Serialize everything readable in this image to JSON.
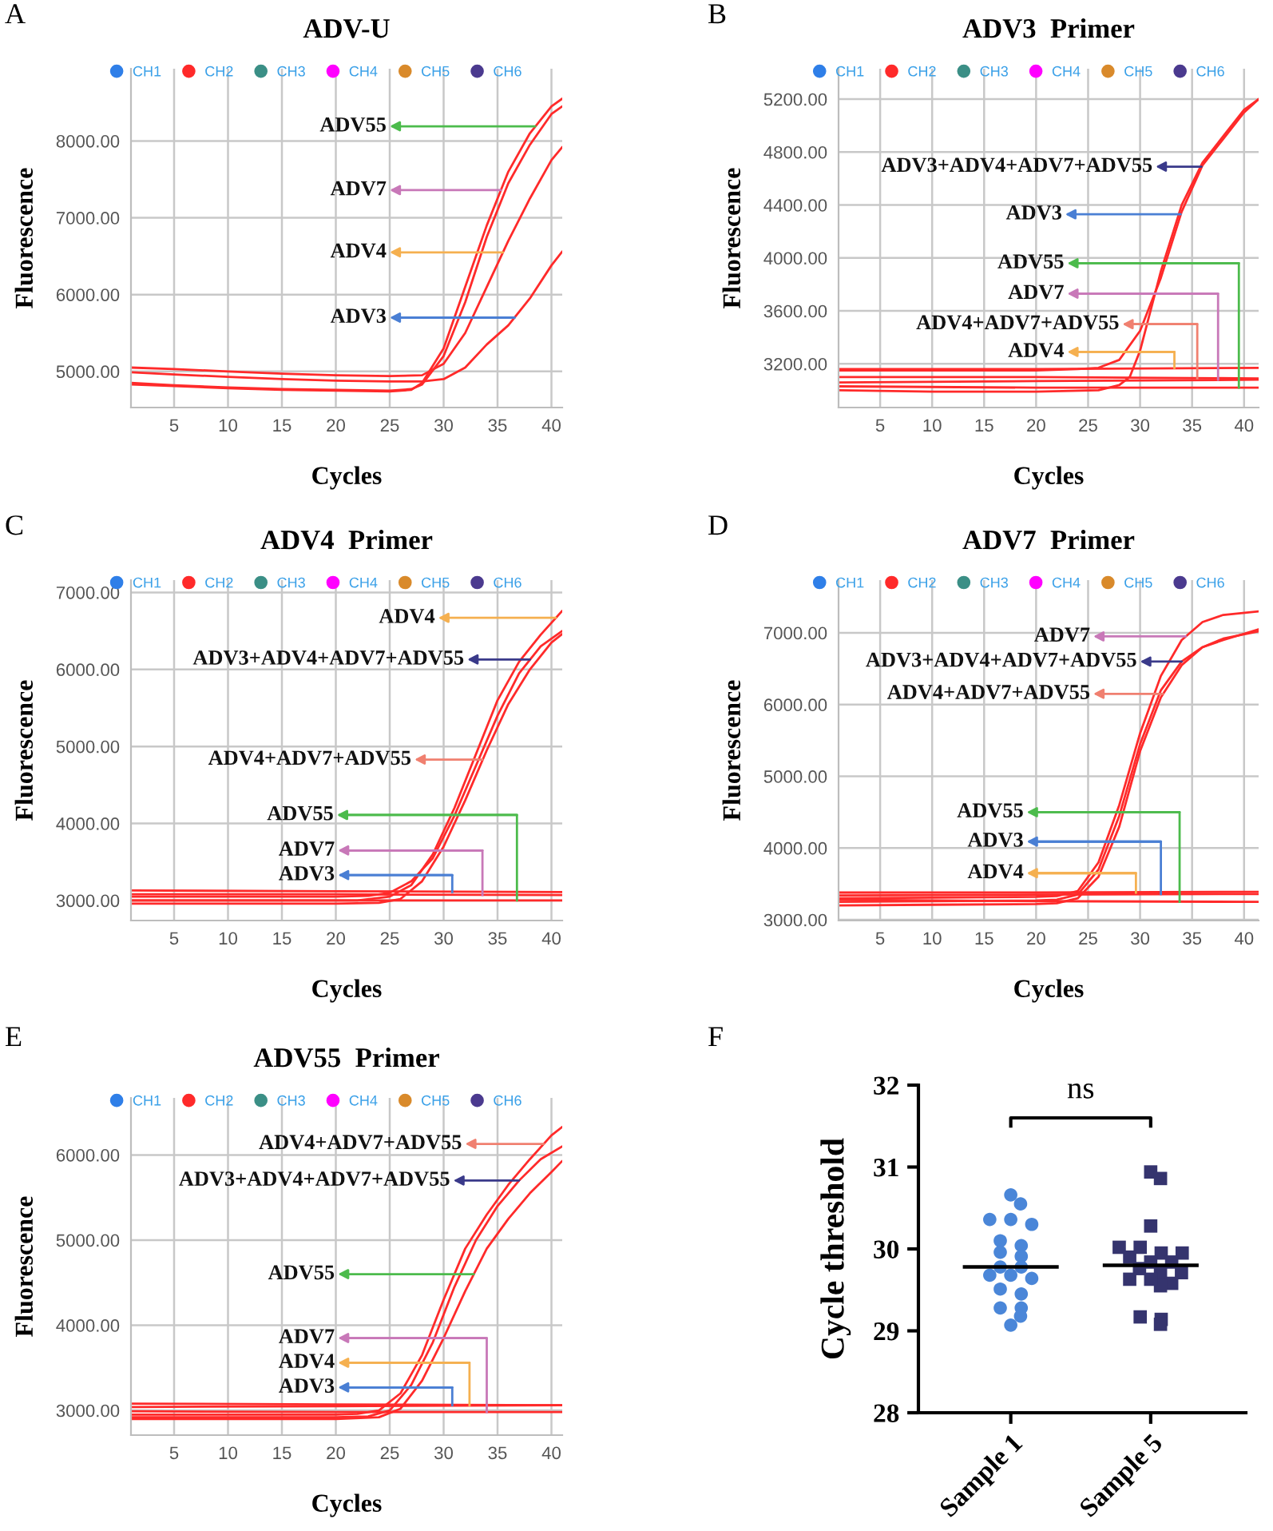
{
  "chart_data": [
    {
      "type": "line",
      "title": "ADV-U",
      "xlabel": "Cycles",
      "ylabel": "Fluorescence",
      "xlim": [
        1,
        41
      ],
      "ylim": [
        4530,
        8940
      ],
      "xticks": [
        5,
        10,
        15,
        20,
        25,
        30,
        35,
        40
      ],
      "yticks": [
        {
          "value": 5000,
          "label": "5000.00"
        },
        {
          "value": 6000,
          "label": "6000.00"
        },
        {
          "value": 7000,
          "label": "7000.00"
        },
        {
          "value": 8000,
          "label": "8000.00"
        }
      ],
      "grid": true,
      "legend": "top",
      "marker": "none",
      "line_style": "solid",
      "annotations": [
        "A",
        {
          "text": "ADV55",
          "x": 38.5,
          "y": 8190
        },
        {
          "text": "ADV7",
          "x": 35.3,
          "y": 7360
        },
        {
          "text": "ADV4",
          "x": 35.5,
          "y": 6550
        },
        {
          "text": "ADV3",
          "x": 36.6,
          "y": 5700
        }
      ],
      "series": [
        {
          "name": "CH1",
          "color": "#2f7fe8"
        },
        {
          "name": "CH2",
          "color": "#ff2a2a",
          "x": [
            1,
            5,
            10,
            15,
            20,
            25,
            27,
            28,
            30,
            32,
            34,
            36,
            38,
            40,
            41
          ],
          "values": [
            4830,
            4810,
            4780,
            4760,
            4750,
            4740,
            4760,
            4850,
            5300,
            6100,
            6900,
            7600,
            8100,
            8450,
            8550
          ]
        },
        {
          "name": "CH3",
          "color": "#3b8f86"
        },
        {
          "name": "CH4",
          "color": "#ff00ff"
        },
        {
          "name": "CH5",
          "color": "#d98a2b"
        },
        {
          "name": "CH6",
          "color": "#4b3a8f"
        },
        {
          "color": "#ff2a2a",
          "x": [
            1,
            5,
            10,
            15,
            20,
            25,
            27,
            28,
            30,
            32,
            34,
            36,
            38,
            40,
            41
          ],
          "values": [
            4850,
            4820,
            4790,
            4770,
            4760,
            4750,
            4770,
            4830,
            5200,
            5900,
            6750,
            7450,
            7950,
            8350,
            8450
          ]
        },
        {
          "color": "#ff2a2a",
          "x": [
            1,
            5,
            10,
            15,
            20,
            25,
            28,
            30,
            32,
            34,
            36,
            38,
            40,
            41
          ],
          "values": [
            5050,
            5030,
            5000,
            4970,
            4950,
            4940,
            4950,
            5100,
            5500,
            6100,
            6700,
            7250,
            7750,
            7920
          ]
        },
        {
          "color": "#ff2a2a",
          "x": [
            1,
            5,
            10,
            15,
            20,
            25,
            28,
            30,
            32,
            34,
            36,
            38,
            40,
            41
          ],
          "values": [
            4990,
            4960,
            4930,
            4900,
            4880,
            4870,
            4870,
            4900,
            5050,
            5350,
            5600,
            5950,
            6380,
            6560
          ]
        }
      ]
    },
    {
      "type": "line",
      "title": "ADV3  Primer",
      "xlabel": "Cycles",
      "ylabel": "Fluorescence",
      "xlim": [
        1,
        41.4
      ],
      "ylim": [
        2870,
        5430
      ],
      "xticks": [
        5,
        10,
        15,
        20,
        25,
        30,
        35,
        40
      ],
      "yticks": [
        {
          "value": 3200,
          "label": "3200.00"
        },
        {
          "value": 3600,
          "label": "3600.00"
        },
        {
          "value": 4000,
          "label": "4000.00"
        },
        {
          "value": 4400,
          "label": "4400.00"
        },
        {
          "value": 4800,
          "label": "4800.00"
        },
        {
          "value": 5200,
          "label": "5200.00"
        }
      ],
      "grid": true,
      "legend": "top",
      "marker": "none",
      "line_style": "solid",
      "annotations": [
        "B",
        {
          "text": "ADV3+ADV4+ADV7+ADV55",
          "x": 35.9,
          "y": 4690
        },
        {
          "text": "ADV3",
          "x": 33.9,
          "y": 4330
        },
        {
          "text": "ADV55",
          "x": 39.5,
          "y": 3020
        },
        {
          "text": "ADV7",
          "x": 37.5,
          "y": 3080
        },
        {
          "text": "ADV4+ADV7+ADV55",
          "x": 35.5,
          "y": 3090
        },
        {
          "text": "ADV4",
          "x": 33.3,
          "y": 3170
        }
      ],
      "series": [
        {
          "name": "CH1",
          "color": "#2f7fe8"
        },
        {
          "name": "CH2",
          "color": "#ff2a2a",
          "x": [
            1,
            10,
            20,
            24,
            26,
            28,
            30,
            32,
            34,
            36,
            38,
            40,
            41.4
          ],
          "values": [
            3150,
            3150,
            3150,
            3160,
            3170,
            3230,
            3450,
            3850,
            4350,
            4700,
            4900,
            5100,
            5200
          ]
        },
        {
          "name": "CH3",
          "color": "#3b8f86"
        },
        {
          "name": "CH4",
          "color": "#ff00ff"
        },
        {
          "name": "CH5",
          "color": "#d98a2b"
        },
        {
          "name": "CH6",
          "color": "#4b3a8f"
        },
        {
          "color": "#ff2a2a",
          "x": [
            1,
            10,
            20,
            26,
            28,
            29,
            30,
            32,
            34,
            36,
            38,
            40,
            41.4
          ],
          "values": [
            3000,
            2990,
            2990,
            3000,
            3040,
            3100,
            3300,
            3900,
            4400,
            4720,
            4920,
            5120,
            5200
          ]
        },
        {
          "color": "#ff2a2a",
          "x": [
            1,
            20,
            41.4
          ],
          "values": [
            3160,
            3160,
            3170
          ]
        },
        {
          "color": "#ff2a2a",
          "x": [
            1,
            20,
            41.4
          ],
          "values": [
            3100,
            3100,
            3090
          ]
        },
        {
          "color": "#ff2a2a",
          "x": [
            1,
            20,
            41.4
          ],
          "values": [
            3060,
            3070,
            3080
          ]
        },
        {
          "color": "#ff2a2a",
          "x": [
            1,
            20,
            41.4
          ],
          "values": [
            3030,
            3020,
            3020
          ]
        }
      ]
    },
    {
      "type": "line",
      "title": "ADV4  Primer",
      "xlabel": "Cycles",
      "ylabel": "Fluorescence",
      "xlim": [
        1,
        41
      ],
      "ylim": [
        2740,
        7160
      ],
      "xticks": [
        5,
        10,
        15,
        20,
        25,
        30,
        35,
        40
      ],
      "yticks": [
        {
          "value": 3000,
          "label": "3000.00"
        },
        {
          "value": 4000,
          "label": "4000.00"
        },
        {
          "value": 5000,
          "label": "5000.00"
        },
        {
          "value": 6000,
          "label": "6000.00"
        },
        {
          "value": 7000,
          "label": "7000.00"
        }
      ],
      "grid": true,
      "legend": "top",
      "marker": "none",
      "line_style": "solid",
      "annotations": [
        "C",
        {
          "text": "ADV4",
          "x": 40.4,
          "y": 6670
        },
        {
          "text": "ADV3+ADV4+ADV7+ADV55",
          "x": 38,
          "y": 6130
        },
        {
          "text": "ADV4+ADV7+ADV55",
          "x": 33.6,
          "y": 4830
        },
        {
          "text": "ADV55",
          "x": 36.8,
          "y": 3000
        },
        {
          "text": "ADV7",
          "x": 33.6,
          "y": 3070
        },
        {
          "text": "ADV3",
          "x": 30.8,
          "y": 3110
        }
      ],
      "series": [
        {
          "name": "CH1",
          "color": "#2f7fe8"
        },
        {
          "name": "CH2",
          "color": "#ff2a2a",
          "x": [
            1,
            10,
            20,
            22,
            25,
            27,
            29,
            31,
            33,
            35,
            37,
            39,
            41
          ],
          "values": [
            3000,
            3000,
            3000,
            3000,
            3050,
            3200,
            3600,
            4200,
            4900,
            5600,
            6100,
            6450,
            6760
          ]
        },
        {
          "name": "CH3",
          "color": "#3b8f86"
        },
        {
          "name": "CH4",
          "color": "#ff00ff"
        },
        {
          "name": "CH5",
          "color": "#d98a2b"
        },
        {
          "name": "CH6",
          "color": "#4b3a8f"
        },
        {
          "color": "#ff2a2a",
          "x": [
            1,
            10,
            20,
            23,
            25,
            27,
            29,
            31,
            33,
            35,
            37,
            39,
            41
          ],
          "values": [
            3050,
            3050,
            3050,
            3060,
            3100,
            3250,
            3550,
            4100,
            4750,
            5400,
            5950,
            6300,
            6500
          ]
        },
        {
          "color": "#ff2a2a",
          "x": [
            1,
            10,
            20,
            24,
            26,
            28,
            30,
            32,
            34,
            36,
            38,
            40,
            41
          ],
          "values": [
            2960,
            2960,
            2960,
            2970,
            3020,
            3250,
            3700,
            4300,
            4950,
            5550,
            6000,
            6350,
            6460
          ]
        },
        {
          "color": "#ff2a2a",
          "x": [
            1,
            20,
            41
          ],
          "values": [
            3130,
            3120,
            3110
          ]
        },
        {
          "color": "#ff2a2a",
          "x": [
            1,
            20,
            41
          ],
          "values": [
            3080,
            3080,
            3070
          ]
        },
        {
          "color": "#ff2a2a",
          "x": [
            1,
            20,
            41
          ],
          "values": [
            3000,
            3000,
            3000
          ]
        }
      ]
    },
    {
      "type": "line",
      "title": "ADV7  Primer",
      "xlabel": "Cycles",
      "ylabel": "Fluorescence",
      "xlim": [
        1,
        41.4
      ],
      "ylim": [
        2990,
        7735
      ],
      "xticks": [
        5,
        10,
        15,
        20,
        25,
        30,
        35,
        40
      ],
      "yticks": [
        {
          "value": 3000,
          "label": "3000.00"
        },
        {
          "value": 4000,
          "label": "4000.00"
        },
        {
          "value": 5000,
          "label": "5000.00"
        },
        {
          "value": 6000,
          "label": "6000.00"
        },
        {
          "value": 7000,
          "label": "7000.00"
        }
      ],
      "grid": true,
      "legend": "top",
      "marker": "none",
      "line_style": "solid",
      "annotations": [
        "D",
        {
          "text": "ADV7",
          "x": 34.4,
          "y": 6950
        },
        {
          "text": "ADV3+ADV4+ADV7+ADV55",
          "x": 34,
          "y": 6600
        },
        {
          "text": "ADV4+ADV7+ADV55",
          "x": 32.2,
          "y": 6150
        },
        {
          "text": "ADV55",
          "x": 33.8,
          "y": 3250
        },
        {
          "text": "ADV3",
          "x": 32,
          "y": 3360
        },
        {
          "text": "ADV4",
          "x": 29.6,
          "y": 3380
        }
      ],
      "series": [
        {
          "name": "CH1",
          "color": "#2f7fe8"
        },
        {
          "name": "CH2",
          "color": "#ff2a2a",
          "x": [
            1,
            10,
            20,
            22,
            24,
            26,
            28,
            30,
            32,
            34,
            36,
            38,
            41.4
          ],
          "values": [
            3300,
            3310,
            3320,
            3330,
            3400,
            3800,
            4600,
            5600,
            6400,
            6900,
            7150,
            7250,
            7300
          ]
        },
        {
          "name": "CH3",
          "color": "#3b8f86"
        },
        {
          "name": "CH4",
          "color": "#ff00ff"
        },
        {
          "name": "CH5",
          "color": "#d98a2b"
        },
        {
          "name": "CH6",
          "color": "#4b3a8f"
        },
        {
          "color": "#ff2a2a",
          "x": [
            1,
            10,
            20,
            22,
            24,
            26,
            28,
            30,
            32,
            34,
            36,
            38,
            41.4
          ],
          "values": [
            3250,
            3260,
            3270,
            3280,
            3350,
            3700,
            4450,
            5450,
            6200,
            6600,
            6800,
            6900,
            7050
          ]
        },
        {
          "color": "#ff2a2a",
          "x": [
            1,
            10,
            20,
            22,
            24,
            26,
            28,
            30,
            32,
            34,
            36,
            38,
            41.4
          ],
          "values": [
            3200,
            3210,
            3220,
            3230,
            3300,
            3600,
            4300,
            5350,
            6100,
            6550,
            6800,
            6920,
            7020
          ]
        },
        {
          "color": "#ff2a2a",
          "x": [
            1,
            20,
            41.4
          ],
          "values": [
            3380,
            3380,
            3390
          ]
        },
        {
          "color": "#ff2a2a",
          "x": [
            1,
            20,
            41.4
          ],
          "values": [
            3340,
            3350,
            3360
          ]
        },
        {
          "color": "#ff2a2a",
          "x": [
            1,
            20,
            41.4
          ],
          "values": [
            3280,
            3260,
            3250
          ]
        }
      ]
    },
    {
      "type": "line",
      "title": "ADV55  Primer",
      "xlabel": "Cycles",
      "ylabel": "Fluorescence",
      "xlim": [
        1,
        41
      ],
      "ylim": [
        2710,
        6670
      ],
      "xticks": [
        5,
        10,
        15,
        20,
        25,
        30,
        35,
        40
      ],
      "yticks": [
        {
          "value": 3000,
          "label": "3000.00"
        },
        {
          "value": 4000,
          "label": "4000.00"
        },
        {
          "value": 5000,
          "label": "5000.00"
        },
        {
          "value": 6000,
          "label": "6000.00"
        }
      ],
      "grid": true,
      "legend": "top",
      "marker": "none",
      "line_style": "solid",
      "annotations": [
        "E",
        {
          "text": "ADV4+ADV7+ADV55",
          "x": 39.3,
          "y": 6130
        },
        {
          "text": "ADV3+ADV4+ADV7+ADV55",
          "x": 37,
          "y": 5700
        },
        {
          "text": "ADV55",
          "x": 32.8,
          "y": 4600
        },
        {
          "text": "ADV7",
          "x": 34,
          "y": 2980
        },
        {
          "text": "ADV4",
          "x": 32.4,
          "y": 3060
        },
        {
          "text": "ADV3",
          "x": 30.8,
          "y": 3060
        }
      ],
      "series": [
        {
          "name": "CH1",
          "color": "#2f7fe8"
        },
        {
          "name": "CH2",
          "color": "#ff2a2a",
          "x": [
            1,
            10,
            20,
            22,
            24,
            26,
            28,
            30,
            32,
            34,
            36,
            38,
            40,
            41
          ],
          "values": [
            2950,
            2950,
            2950,
            2960,
            3000,
            3200,
            3650,
            4300,
            4900,
            5300,
            5650,
            5950,
            6230,
            6330
          ]
        },
        {
          "name": "CH3",
          "color": "#3b8f86"
        },
        {
          "name": "CH4",
          "color": "#ff00ff"
        },
        {
          "name": "CH5",
          "color": "#d98a2b"
        },
        {
          "name": "CH6",
          "color": "#4b3a8f"
        },
        {
          "color": "#ff2a2a",
          "x": [
            1,
            10,
            20,
            23,
            25,
            27,
            29,
            31,
            33,
            35,
            37,
            39,
            41
          ],
          "values": [
            2920,
            2920,
            2920,
            2930,
            3000,
            3300,
            3800,
            4450,
            5000,
            5400,
            5700,
            5950,
            6100
          ]
        },
        {
          "color": "#ff2a2a",
          "x": [
            1,
            10,
            20,
            24,
            26,
            28,
            30,
            32,
            34,
            36,
            38,
            40,
            41
          ],
          "values": [
            2900,
            2900,
            2900,
            2920,
            3020,
            3350,
            3850,
            4400,
            4900,
            5250,
            5550,
            5800,
            5930
          ]
        },
        {
          "color": "#ff2a2a",
          "x": [
            1,
            20,
            41
          ],
          "values": [
            3080,
            3070,
            3060
          ]
        },
        {
          "color": "#ff2a2a",
          "x": [
            1,
            20,
            41
          ],
          "values": [
            3040,
            3050,
            3060
          ]
        },
        {
          "color": "#ff2a2a",
          "x": [
            1,
            20,
            41
          ],
          "values": [
            2990,
            2980,
            2980
          ]
        }
      ]
    },
    {
      "type": "scatter",
      "categories": [
        "Sample 1",
        "Sample 5"
      ],
      "ylabel": "Cycle threshold",
      "ylim": [
        28,
        32
      ],
      "yticks": [
        28,
        29,
        30,
        31,
        32
      ],
      "annotations": [
        "F",
        "ns"
      ],
      "ref_lines": [
        {
          "axis": "y",
          "value": 29.78,
          "color": "#000000"
        },
        {
          "axis": "y",
          "value": 29.8,
          "color": "#000000"
        }
      ],
      "series": [
        {
          "color": "#4a86d8",
          "marker": "circle",
          "x": [
            "Sample 1",
            "Sample 1",
            "Sample 1",
            "Sample 1",
            "Sample 1",
            "Sample 1",
            "Sample 1",
            "Sample 1",
            "Sample 1",
            "Sample 1",
            "Sample 1",
            "Sample 1",
            "Sample 1",
            "Sample 1",
            "Sample 1",
            "Sample 1",
            "Sample 1",
            "Sample 1",
            "Sample 1",
            "Sample 1"
          ],
          "values": [
            30.66,
            30.55,
            30.36,
            30.3,
            30.36,
            30.1,
            30.04,
            29.96,
            29.91,
            29.78,
            29.78,
            29.68,
            29.68,
            29.64,
            29.51,
            29.45,
            29.28,
            29.28,
            29.18,
            29.07
          ]
        },
        {
          "color": "#35346e",
          "marker": "square",
          "x": [
            "Sample 5",
            "Sample 5",
            "Sample 5",
            "Sample 5",
            "Sample 5",
            "Sample 5",
            "Sample 5",
            "Sample 5",
            "Sample 5",
            "Sample 5",
            "Sample 5",
            "Sample 5",
            "Sample 5",
            "Sample 5",
            "Sample 5",
            "Sample 5",
            "Sample 5",
            "Sample 5",
            "Sample 5",
            "Sample 5"
          ],
          "values": [
            30.94,
            30.86,
            30.28,
            29.95,
            30.02,
            30.02,
            29.95,
            29.9,
            29.84,
            29.84,
            29.71,
            29.71,
            29.76,
            29.58,
            29.63,
            29.55,
            29.63,
            29.17,
            29.14,
            29.08
          ]
        }
      ]
    }
  ]
}
